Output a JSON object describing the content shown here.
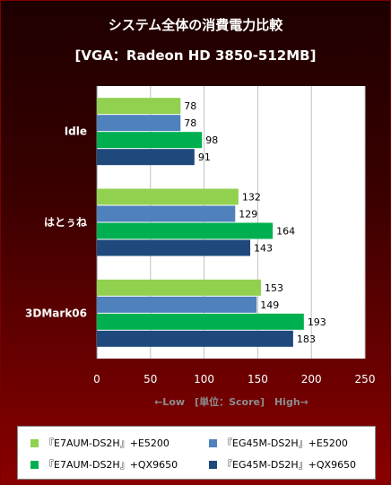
{
  "chart_data": {
    "type": "bar",
    "orientation": "horizontal",
    "title": "システム全体の消費電力比較",
    "subtitle": "[VGA：Radeon HD 3850-512MB]",
    "categories": [
      "Idle",
      "はとぅね",
      "3DMark06"
    ],
    "series": [
      {
        "name": "『E7AUM-DS2H』+E5200",
        "color": "#92d050",
        "values": [
          78,
          132,
          153
        ]
      },
      {
        "name": "『EG45M-DS2H』+E5200",
        "color": "#4f81bd",
        "values": [
          78,
          129,
          149
        ]
      },
      {
        "name": "『E7AUM-DS2H』+QX9650",
        "color": "#00b050",
        "values": [
          98,
          164,
          193
        ]
      },
      {
        "name": "『EG45M-DS2H』+QX9650",
        "color": "#1f497d",
        "values": [
          91,
          143,
          183
        ]
      }
    ],
    "xlim": [
      0,
      250
    ],
    "xticks": [
      0,
      50,
      100,
      150,
      200,
      250
    ],
    "xlabel": "←Low　[単位：Score]　High→",
    "grid": true,
    "legend_position": "bottom"
  }
}
